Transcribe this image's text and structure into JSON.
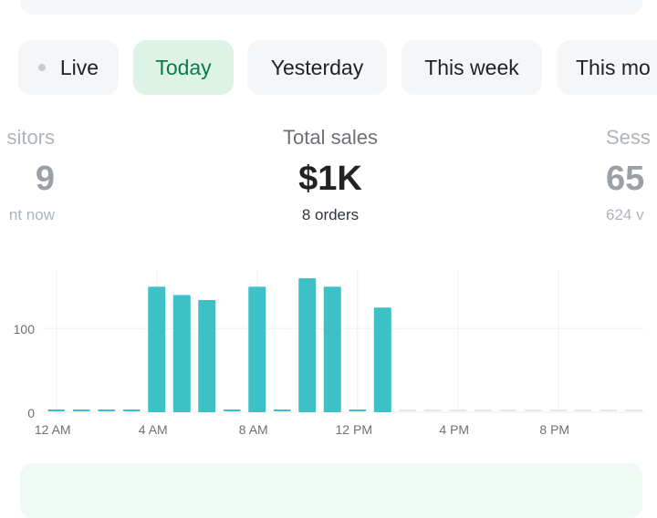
{
  "filters": {
    "live": "Live",
    "today": "Today",
    "yesterday": "Yesterday",
    "this_week": "This week",
    "this_month": "This mo"
  },
  "metrics": {
    "visitors": {
      "label": "sitors",
      "value": "9",
      "sub": "nt now"
    },
    "total_sales": {
      "label": "Total sales",
      "value": "$1K",
      "sub": "8 orders"
    },
    "sessions": {
      "label": "Sess",
      "value": "65",
      "sub": "624 v"
    }
  },
  "colors": {
    "accent": "#3cc1c7",
    "active_chip_bg": "#ddf3e6",
    "active_chip_text": "#0e7a4a"
  },
  "chart_data": {
    "type": "bar",
    "categories": [
      "12 AM",
      "1 AM",
      "2 AM",
      "3 AM",
      "4 AM",
      "5 AM",
      "6 AM",
      "7 AM",
      "8 AM",
      "9 AM",
      "10 AM",
      "11 AM",
      "12 PM",
      "1 PM",
      "2 PM",
      "3 PM",
      "4 PM",
      "5 PM",
      "6 PM",
      "7 PM",
      "8 PM",
      "9 PM",
      "10 PM",
      "11 PM"
    ],
    "values": [
      0,
      0,
      0,
      0,
      150,
      140,
      134,
      0,
      150,
      0,
      160,
      150,
      0,
      125,
      0,
      0,
      0,
      0,
      0,
      0,
      0,
      0,
      0,
      0
    ],
    "x_tick_labels": [
      "12 AM",
      "4 AM",
      "8 AM",
      "12 PM",
      "4 PM",
      "8 PM"
    ],
    "y_tick_labels": [
      "0",
      "100"
    ],
    "ylim": [
      0,
      170
    ],
    "grid": true
  }
}
